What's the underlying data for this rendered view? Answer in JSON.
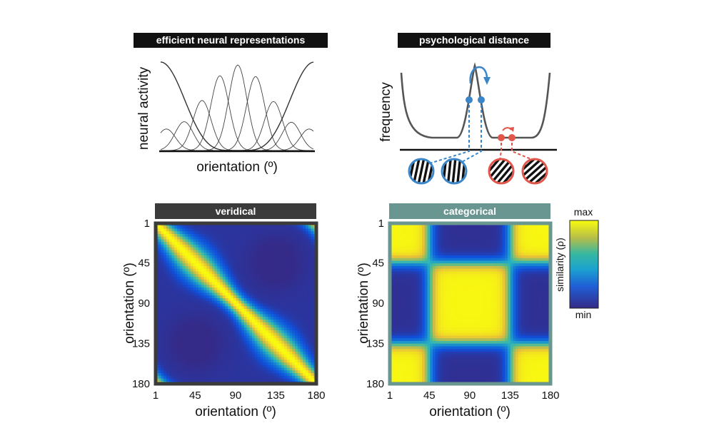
{
  "panels": {
    "neural": {
      "title": "efficient neural representations",
      "xlabel": "orientation (º)",
      "ylabel": "neural activity"
    },
    "psych": {
      "title": "psychological distance",
      "ylabel": "frequency"
    },
    "veridical": {
      "title": "veridical",
      "xlabel": "orientation (º)",
      "ylabel": "orientation (º)",
      "ticks": [
        "1",
        "45",
        "90",
        "135",
        "180"
      ]
    },
    "categorical": {
      "title": "categorical",
      "xlabel": "orientation (º)",
      "ylabel": "orientation (º)",
      "ticks": [
        "1",
        "45",
        "90",
        "135",
        "180"
      ]
    }
  },
  "colorbar": {
    "max": "max",
    "min": "min",
    "label": "similarity (ρ)"
  },
  "colors": {
    "title_dark": "#111111",
    "veridical_bar": "#3b3b3b",
    "categorical_bar": "#6a9692",
    "blue": "#3a86c8",
    "red": "#e1554a",
    "curve": "#555555"
  },
  "icons": [
    "orientation-tuning-curves-icon",
    "frequency-curve-icon",
    "grating-icon",
    "similarity-matrix-icon"
  ]
}
